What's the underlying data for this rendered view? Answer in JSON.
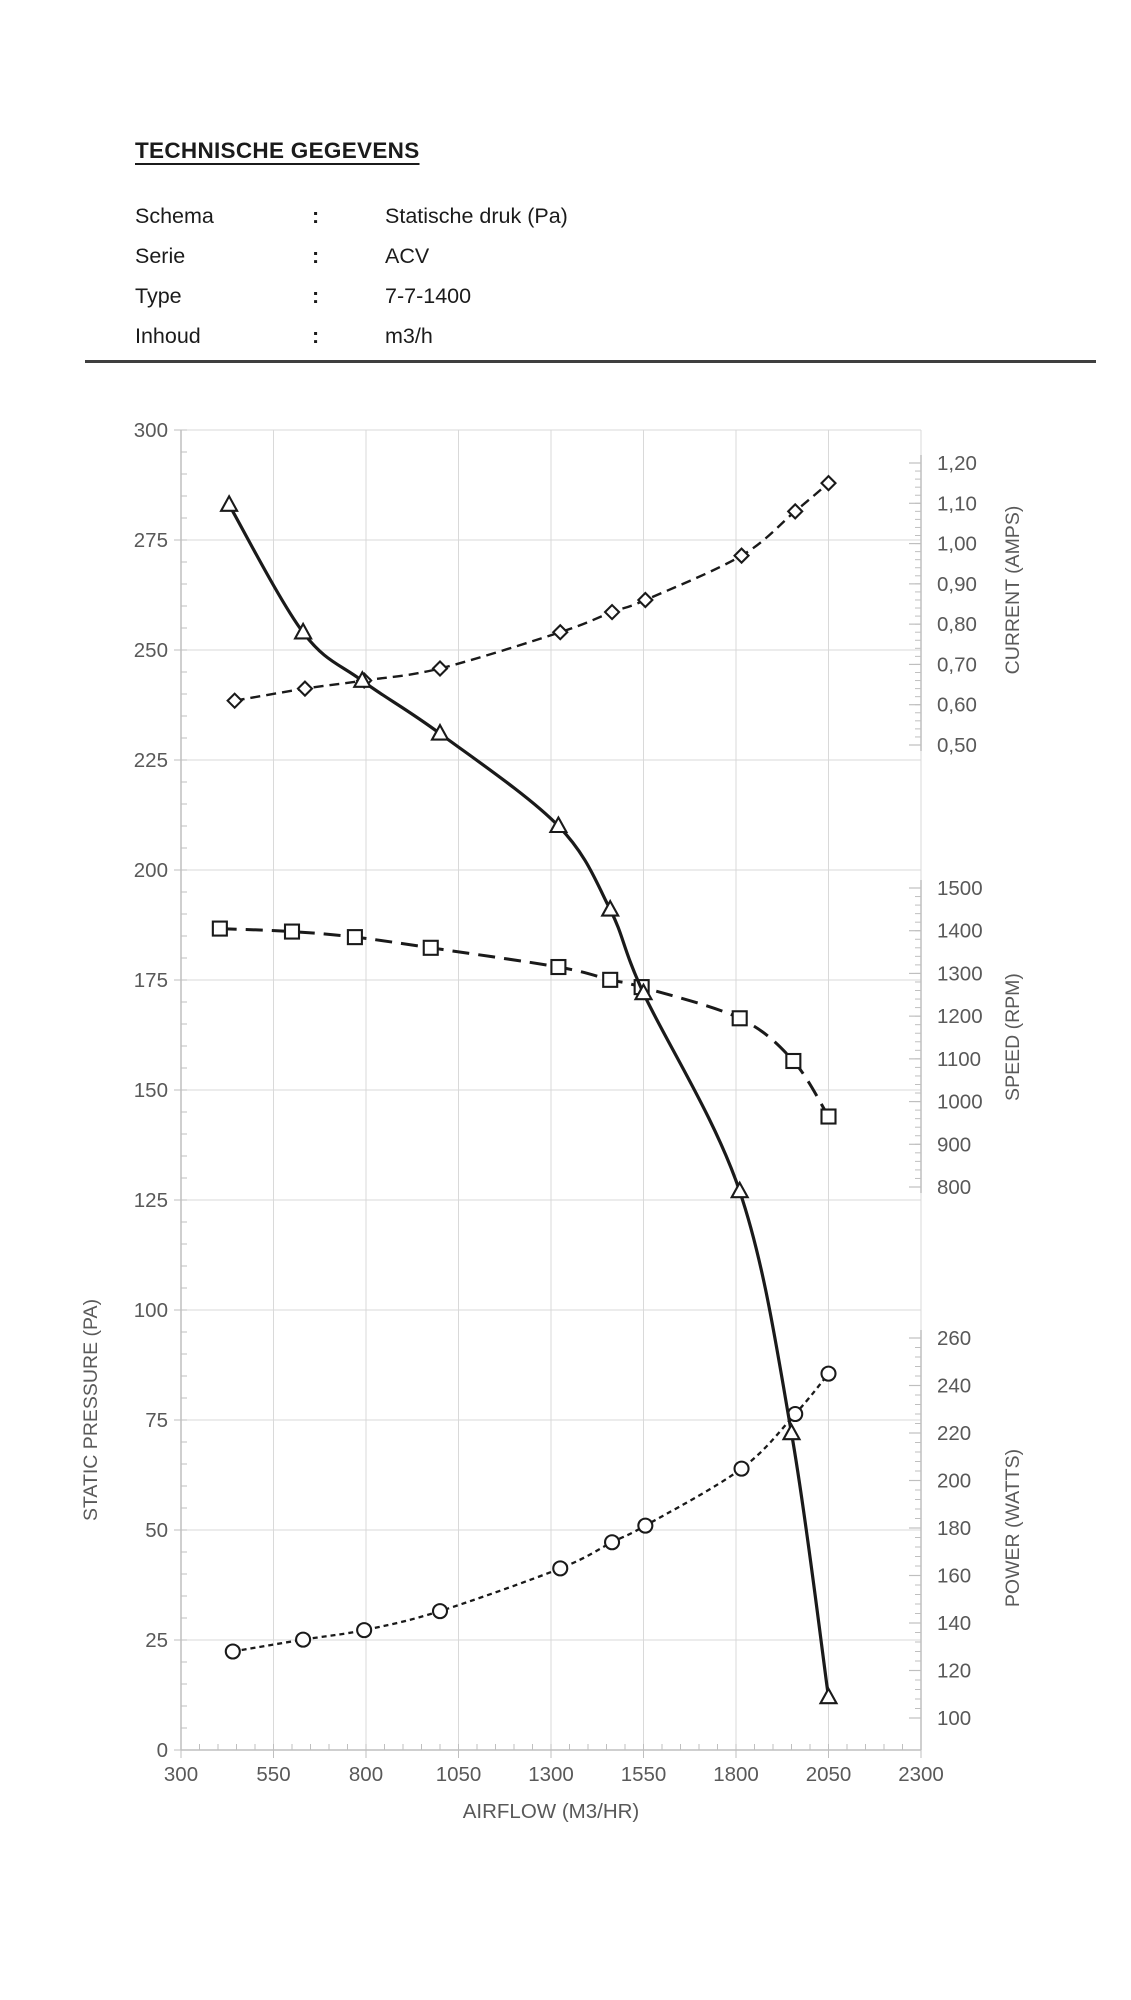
{
  "document": {
    "title": "TECHNISCHE GEGEVENS",
    "info_rows": [
      {
        "label": "Schema",
        "separator": ":",
        "value": "Statische druk (Pa)"
      },
      {
        "label": "Serie",
        "separator": ":",
        "value": "ACV"
      },
      {
        "label": "Type",
        "separator": ":",
        "value": "7-7-1400"
      },
      {
        "label": "Inhoud",
        "separator": ":",
        "value": "m3/h"
      }
    ]
  },
  "chart_data": {
    "type": "line",
    "title": "",
    "xlabel": "AIRFLOW (M3/HR)",
    "xlim": [
      300,
      2300
    ],
    "x_tick_step": 250,
    "x_minor_step": 50,
    "x_tick_labels": [
      "300",
      "550",
      "800",
      "1050",
      "1300",
      "1550",
      "1800",
      "2050",
      "2300"
    ],
    "grid": true,
    "legend": "none",
    "axes": {
      "pressure": {
        "label": "STATIC PRESSURE (PA)",
        "side": "left",
        "min": 0,
        "max": 300,
        "step": 25,
        "minor_step": 5,
        "tick_labels": [
          "0",
          "25",
          "50",
          "75",
          "100",
          "125",
          "150",
          "175",
          "200",
          "225",
          "250",
          "275",
          "300"
        ]
      },
      "current": {
        "label": "CURRENT (AMPS)",
        "side": "right",
        "min": 0.5,
        "max": 1.2,
        "step": 0.1,
        "minor_step": 0.02,
        "tick_labels": [
          "0,50",
          "0,60",
          "0,70",
          "0,80",
          "0,90",
          "1,00",
          "1,10",
          "1,20"
        ]
      },
      "speed": {
        "label": "SPEED (RPM)",
        "side": "right",
        "min": 800,
        "max": 1500,
        "step": 100,
        "minor_step": 20,
        "tick_labels": [
          "800",
          "900",
          "1000",
          "1100",
          "1200",
          "1300",
          "1400",
          "1500"
        ]
      },
      "power": {
        "label": "POWER (WATTS)",
        "side": "right",
        "min": 100,
        "max": 260,
        "step": 20,
        "minor_step": 4,
        "tick_labels": [
          "100",
          "120",
          "140",
          "160",
          "180",
          "200",
          "220",
          "240",
          "260"
        ]
      }
    },
    "series": [
      {
        "name": "static-pressure",
        "axis": "pressure",
        "marker": "triangle",
        "line": "solid",
        "points": [
          [
            430,
            283
          ],
          [
            630,
            254
          ],
          [
            790,
            243
          ],
          [
            1000,
            231
          ],
          [
            1320,
            210
          ],
          [
            1460,
            191
          ],
          [
            1550,
            172
          ],
          [
            1810,
            127
          ],
          [
            1950,
            72
          ],
          [
            2050,
            12
          ]
        ]
      },
      {
        "name": "current",
        "axis": "current",
        "marker": "diamond",
        "line": "dashed",
        "points": [
          [
            445,
            0.61
          ],
          [
            635,
            0.64
          ],
          [
            795,
            0.66
          ],
          [
            1000,
            0.69
          ],
          [
            1325,
            0.78
          ],
          [
            1465,
            0.83
          ],
          [
            1555,
            0.86
          ],
          [
            1815,
            0.97
          ],
          [
            1960,
            1.08
          ],
          [
            2050,
            1.15
          ]
        ]
      },
      {
        "name": "speed",
        "axis": "speed",
        "marker": "square",
        "line": "long-dash",
        "points": [
          [
            405,
            1405
          ],
          [
            600,
            1398
          ],
          [
            770,
            1385
          ],
          [
            975,
            1360
          ],
          [
            1320,
            1315
          ],
          [
            1460,
            1285
          ],
          [
            1545,
            1268
          ],
          [
            1810,
            1195
          ],
          [
            1955,
            1095
          ],
          [
            2050,
            965
          ]
        ]
      },
      {
        "name": "power",
        "axis": "power",
        "marker": "circle",
        "line": "dotted",
        "points": [
          [
            440,
            128
          ],
          [
            630,
            133
          ],
          [
            795,
            137
          ],
          [
            1000,
            145
          ],
          [
            1325,
            163
          ],
          [
            1465,
            174
          ],
          [
            1555,
            181
          ],
          [
            1815,
            205
          ],
          [
            1960,
            228
          ],
          [
            2050,
            245
          ]
        ]
      }
    ],
    "colors": {
      "series_stroke": "#1a1a1a",
      "marker_fill": "#ffffff",
      "gridline": "#d9d9d9",
      "axis_line": "#bfbfbf",
      "tick_label": "#595959",
      "axis_title": "#595959"
    }
  }
}
